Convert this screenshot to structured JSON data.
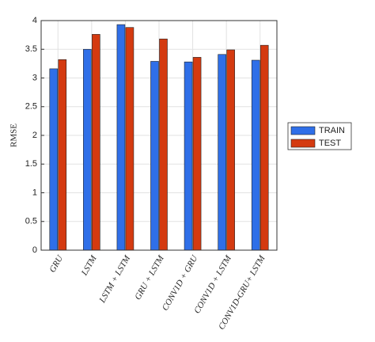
{
  "chart_data": {
    "type": "grouped-bar",
    "ylabel": "RMSE",
    "categories": [
      "GRU",
      "LSTM",
      "LSTM + LSTM",
      "GRU + LSTM",
      "CONV1D + GRU",
      "CONV1D + LSTM",
      "CONV1D-GRU+ LSTM"
    ],
    "series": [
      {
        "name": "TRAIN",
        "color": "#2f6fe8",
        "values": [
          3.16,
          3.5,
          3.93,
          3.29,
          3.28,
          3.41,
          3.31
        ]
      },
      {
        "name": "TEST",
        "color": "#d43a10",
        "values": [
          3.32,
          3.76,
          3.88,
          3.68,
          3.36,
          3.49,
          3.57
        ]
      }
    ],
    "ylim": [
      0,
      4
    ],
    "yticks": [
      0,
      0.5,
      1,
      1.5,
      2,
      2.5,
      3,
      3.5,
      4
    ],
    "grid": true,
    "legend": "right"
  }
}
